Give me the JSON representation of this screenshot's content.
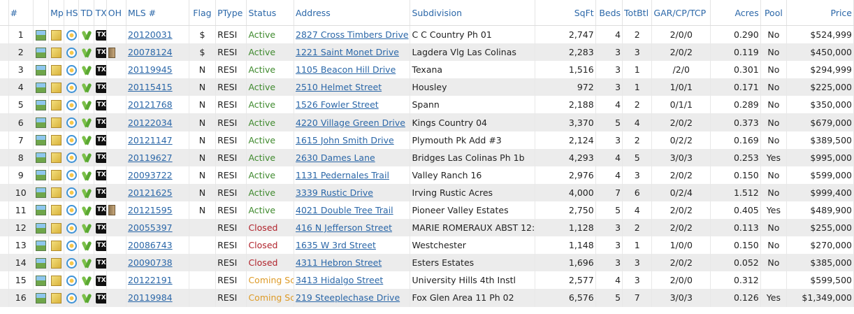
{
  "headers": {
    "num": "#",
    "mp": "Mp",
    "hs": "HS",
    "td": "TD",
    "tx": "TX",
    "oh": "OH",
    "mls": "MLS #",
    "flag": "Flag",
    "ptype": "PType",
    "status": "Status",
    "address": "Address",
    "subdivision": "Subdivision",
    "sqft": "SqFt",
    "beds": "Beds",
    "totbth": "TotBtl",
    "garage": "GAR/CP/TCP",
    "acres": "Acres",
    "pool": "Pool",
    "price": "Price"
  },
  "status_colors": {
    "Active": "#3f8a2e",
    "Closed": "#b0222b",
    "Coming Soon": "#dd9a26"
  },
  "icons": [
    "photo-icon",
    "map-icon",
    "homesnap-icon",
    "td-icon",
    "tx-icon",
    "open-house-icon"
  ],
  "tx_icon_label": "TX",
  "rows": [
    {
      "num": "1",
      "oh": false,
      "mls": "20120031",
      "flag": "$",
      "ptype": "RESI",
      "status": "Active",
      "address": "2827 Cross Timbers Drive",
      "subdivision": "C C Country Ph 01",
      "sqft": "2,747",
      "beds": "4",
      "totbth": "2",
      "garage": "2/0/0",
      "acres": "0.290",
      "pool": "No",
      "price": "$524,999"
    },
    {
      "num": "2",
      "oh": true,
      "mls": "20078124",
      "flag": "$",
      "ptype": "RESI",
      "status": "Active",
      "address": "1221 Saint Monet Drive",
      "subdivision": "Lagdera Vlg Las Colinas",
      "sqft": "2,283",
      "beds": "3",
      "totbth": "3",
      "garage": "2/0/2",
      "acres": "0.119",
      "pool": "No",
      "price": "$450,000"
    },
    {
      "num": "3",
      "oh": false,
      "mls": "20119945",
      "flag": "N",
      "ptype": "RESI",
      "status": "Active",
      "address": "1105 Beacon Hill Drive",
      "subdivision": "Texana",
      "sqft": "1,516",
      "beds": "3",
      "totbth": "1",
      "garage": "/2/0",
      "acres": "0.301",
      "pool": "No",
      "price": "$294,999"
    },
    {
      "num": "4",
      "oh": false,
      "mls": "20115415",
      "flag": "N",
      "ptype": "RESI",
      "status": "Active",
      "address": "2510 Helmet Street",
      "subdivision": "Housley",
      "sqft": "972",
      "beds": "3",
      "totbth": "1",
      "garage": "1/0/1",
      "acres": "0.171",
      "pool": "No",
      "price": "$225,000"
    },
    {
      "num": "5",
      "oh": false,
      "mls": "20121768",
      "flag": "N",
      "ptype": "RESI",
      "status": "Active",
      "address": "1526 Fowler Street",
      "subdivision": "Spann",
      "sqft": "2,188",
      "beds": "4",
      "totbth": "2",
      "garage": "0/1/1",
      "acres": "0.289",
      "pool": "No",
      "price": "$350,000"
    },
    {
      "num": "6",
      "oh": false,
      "mls": "20122034",
      "flag": "N",
      "ptype": "RESI",
      "status": "Active",
      "address": "4220 Village Green Drive",
      "subdivision": "Kings Country 04",
      "sqft": "3,370",
      "beds": "5",
      "totbth": "4",
      "garage": "2/0/2",
      "acres": "0.373",
      "pool": "No",
      "price": "$679,000"
    },
    {
      "num": "7",
      "oh": false,
      "mls": "20121147",
      "flag": "N",
      "ptype": "RESI",
      "status": "Active",
      "address": "1615 John Smith Drive",
      "subdivision": "Plymouth Pk Add #3",
      "sqft": "2,124",
      "beds": "3",
      "totbth": "2",
      "garage": "0/2/2",
      "acres": "0.169",
      "pool": "No",
      "price": "$389,500"
    },
    {
      "num": "8",
      "oh": false,
      "mls": "20119627",
      "flag": "N",
      "ptype": "RESI",
      "status": "Active",
      "address": "2630 Dames Lane",
      "subdivision": "Bridges Las Colinas Ph 1b",
      "sqft": "4,293",
      "beds": "4",
      "totbth": "5",
      "garage": "3/0/3",
      "acres": "0.253",
      "pool": "Yes",
      "price": "$995,000"
    },
    {
      "num": "9",
      "oh": false,
      "mls": "20093722",
      "flag": "N",
      "ptype": "RESI",
      "status": "Active",
      "address": "1131 Pedernales Trail",
      "subdivision": "Valley Ranch 16",
      "sqft": "2,976",
      "beds": "4",
      "totbth": "3",
      "garage": "2/0/2",
      "acres": "0.150",
      "pool": "No",
      "price": "$599,000"
    },
    {
      "num": "10",
      "oh": false,
      "mls": "20121625",
      "flag": "N",
      "ptype": "RESI",
      "status": "Active",
      "address": "3339 Rustic Drive",
      "subdivision": "Irving Rustic Acres",
      "sqft": "4,000",
      "beds": "7",
      "totbth": "6",
      "garage": "0/2/4",
      "acres": "1.512",
      "pool": "No",
      "price": "$999,400"
    },
    {
      "num": "11",
      "oh": true,
      "mls": "20121595",
      "flag": "N",
      "ptype": "RESI",
      "status": "Active",
      "address": "4021 Double Tree Trail",
      "subdivision": "Pioneer Valley Estates",
      "sqft": "2,750",
      "beds": "5",
      "totbth": "4",
      "garage": "2/0/2",
      "acres": "0.405",
      "pool": "Yes",
      "price": "$489,900"
    },
    {
      "num": "12",
      "oh": false,
      "mls": "20055397",
      "flag": "",
      "ptype": "RESI",
      "status": "Closed",
      "address": "416 N Jefferson Street",
      "subdivision": "MARIE ROMERAUX ABST 12:",
      "sqft": "1,128",
      "beds": "3",
      "totbth": "2",
      "garage": "2/0/2",
      "acres": "0.113",
      "pool": "No",
      "price": "$255,000"
    },
    {
      "num": "13",
      "oh": false,
      "mls": "20086743",
      "flag": "",
      "ptype": "RESI",
      "status": "Closed",
      "address": "1635 W 3rd Street",
      "subdivision": "Westchester",
      "sqft": "1,148",
      "beds": "3",
      "totbth": "1",
      "garage": "1/0/0",
      "acres": "0.150",
      "pool": "No",
      "price": "$270,000"
    },
    {
      "num": "14",
      "oh": false,
      "mls": "20090738",
      "flag": "",
      "ptype": "RESI",
      "status": "Closed",
      "address": "4311 Hebron Street",
      "subdivision": "Esters Estates",
      "sqft": "1,696",
      "beds": "3",
      "totbth": "3",
      "garage": "2/0/2",
      "acres": "0.052",
      "pool": "No",
      "price": "$385,000"
    },
    {
      "num": "15",
      "oh": false,
      "mls": "20122191",
      "flag": "",
      "ptype": "RESI",
      "status": "Coming Sc",
      "address": "3413 Hidalgo Street",
      "subdivision": "University Hills 4th Instl",
      "sqft": "2,577",
      "beds": "4",
      "totbth": "3",
      "garage": "2/0/0",
      "acres": "0.312",
      "pool": "",
      "price": "$599,500"
    },
    {
      "num": "16",
      "oh": false,
      "mls": "20119984",
      "flag": "",
      "ptype": "RESI",
      "status": "Coming Sc",
      "address": "219 Steeplechase Drive",
      "subdivision": "Fox Glen Area 11 Ph 02",
      "sqft": "6,576",
      "beds": "5",
      "totbth": "7",
      "garage": "3/0/3",
      "acres": "0.126",
      "pool": "Yes",
      "price": "$1,349,000"
    }
  ]
}
